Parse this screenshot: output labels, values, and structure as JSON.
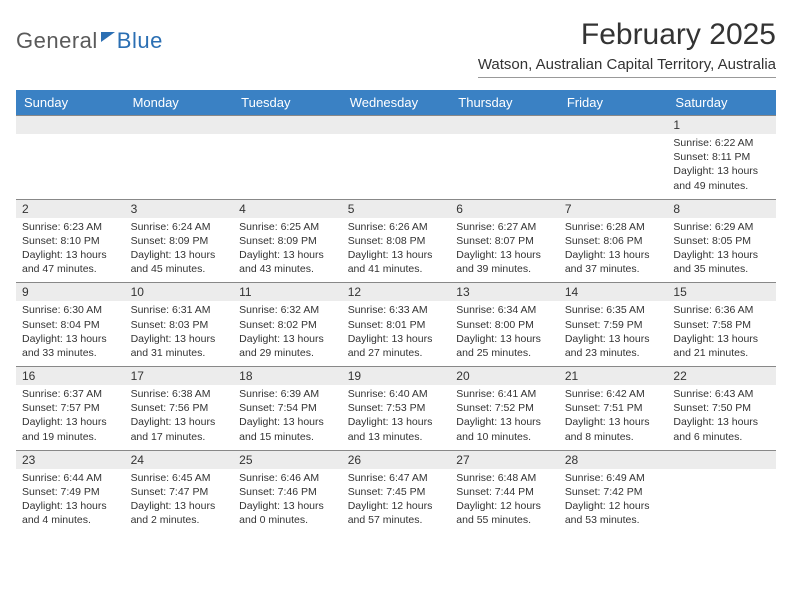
{
  "logo": {
    "word1": "General",
    "word2": "Blue"
  },
  "title": "February 2025",
  "location": "Watson, Australian Capital Territory, Australia",
  "header_bg": "#3a81c4",
  "stripe_bg": "#ececec",
  "days_of_week": [
    "Sunday",
    "Monday",
    "Tuesday",
    "Wednesday",
    "Thursday",
    "Friday",
    "Saturday"
  ],
  "weeks": [
    {
      "nums": [
        "",
        "",
        "",
        "",
        "",
        "",
        "1"
      ],
      "info": [
        "",
        "",
        "",
        "",
        "",
        "",
        "Sunrise: 6:22 AM\nSunset: 8:11 PM\nDaylight: 13 hours and 49 minutes."
      ]
    },
    {
      "nums": [
        "2",
        "3",
        "4",
        "5",
        "6",
        "7",
        "8"
      ],
      "info": [
        "Sunrise: 6:23 AM\nSunset: 8:10 PM\nDaylight: 13 hours and 47 minutes.",
        "Sunrise: 6:24 AM\nSunset: 8:09 PM\nDaylight: 13 hours and 45 minutes.",
        "Sunrise: 6:25 AM\nSunset: 8:09 PM\nDaylight: 13 hours and 43 minutes.",
        "Sunrise: 6:26 AM\nSunset: 8:08 PM\nDaylight: 13 hours and 41 minutes.",
        "Sunrise: 6:27 AM\nSunset: 8:07 PM\nDaylight: 13 hours and 39 minutes.",
        "Sunrise: 6:28 AM\nSunset: 8:06 PM\nDaylight: 13 hours and 37 minutes.",
        "Sunrise: 6:29 AM\nSunset: 8:05 PM\nDaylight: 13 hours and 35 minutes."
      ]
    },
    {
      "nums": [
        "9",
        "10",
        "11",
        "12",
        "13",
        "14",
        "15"
      ],
      "info": [
        "Sunrise: 6:30 AM\nSunset: 8:04 PM\nDaylight: 13 hours and 33 minutes.",
        "Sunrise: 6:31 AM\nSunset: 8:03 PM\nDaylight: 13 hours and 31 minutes.",
        "Sunrise: 6:32 AM\nSunset: 8:02 PM\nDaylight: 13 hours and 29 minutes.",
        "Sunrise: 6:33 AM\nSunset: 8:01 PM\nDaylight: 13 hours and 27 minutes.",
        "Sunrise: 6:34 AM\nSunset: 8:00 PM\nDaylight: 13 hours and 25 minutes.",
        "Sunrise: 6:35 AM\nSunset: 7:59 PM\nDaylight: 13 hours and 23 minutes.",
        "Sunrise: 6:36 AM\nSunset: 7:58 PM\nDaylight: 13 hours and 21 minutes."
      ]
    },
    {
      "nums": [
        "16",
        "17",
        "18",
        "19",
        "20",
        "21",
        "22"
      ],
      "info": [
        "Sunrise: 6:37 AM\nSunset: 7:57 PM\nDaylight: 13 hours and 19 minutes.",
        "Sunrise: 6:38 AM\nSunset: 7:56 PM\nDaylight: 13 hours and 17 minutes.",
        "Sunrise: 6:39 AM\nSunset: 7:54 PM\nDaylight: 13 hours and 15 minutes.",
        "Sunrise: 6:40 AM\nSunset: 7:53 PM\nDaylight: 13 hours and 13 minutes.",
        "Sunrise: 6:41 AM\nSunset: 7:52 PM\nDaylight: 13 hours and 10 minutes.",
        "Sunrise: 6:42 AM\nSunset: 7:51 PM\nDaylight: 13 hours and 8 minutes.",
        "Sunrise: 6:43 AM\nSunset: 7:50 PM\nDaylight: 13 hours and 6 minutes."
      ]
    },
    {
      "nums": [
        "23",
        "24",
        "25",
        "26",
        "27",
        "28",
        ""
      ],
      "info": [
        "Sunrise: 6:44 AM\nSunset: 7:49 PM\nDaylight: 13 hours and 4 minutes.",
        "Sunrise: 6:45 AM\nSunset: 7:47 PM\nDaylight: 13 hours and 2 minutes.",
        "Sunrise: 6:46 AM\nSunset: 7:46 PM\nDaylight: 13 hours and 0 minutes.",
        "Sunrise: 6:47 AM\nSunset: 7:45 PM\nDaylight: 12 hours and 57 minutes.",
        "Sunrise: 6:48 AM\nSunset: 7:44 PM\nDaylight: 12 hours and 55 minutes.",
        "Sunrise: 6:49 AM\nSunset: 7:42 PM\nDaylight: 12 hours and 53 minutes.",
        ""
      ]
    }
  ]
}
